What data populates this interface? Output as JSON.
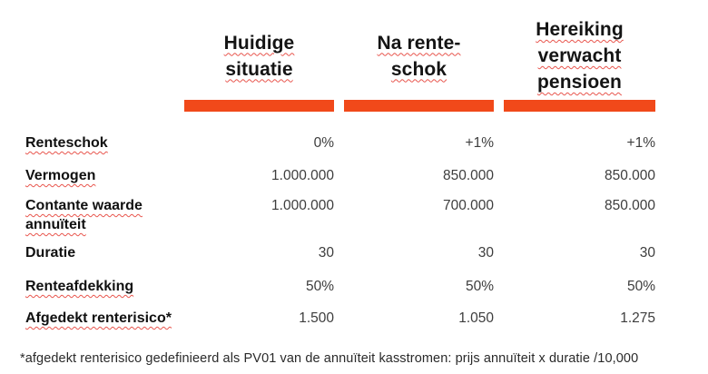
{
  "colors": {
    "accent_bar": "#F1491A",
    "spellcheck_squiggle": "#E8554D",
    "heading_text": "#141414",
    "value_text": "#3D3D3D"
  },
  "table": {
    "columns": [
      {
        "label": "Huidige situatie"
      },
      {
        "label": "Na rente-schok"
      },
      {
        "label": "Hereiking verwacht pensioen"
      }
    ],
    "rows": [
      {
        "label": "Renteschok",
        "values": [
          "0%",
          "+1%",
          "+1%"
        ]
      },
      {
        "label": "Vermogen",
        "values": [
          "1.000.000",
          "850.000",
          "850.000"
        ]
      },
      {
        "label": "Contante waarde annuïteit",
        "values": [
          "1.000.000",
          "700.000",
          "850.000"
        ]
      },
      {
        "label": "Duratie",
        "values": [
          "30",
          "30",
          "30"
        ]
      },
      {
        "label": "Renteafdekking",
        "values": [
          "50%",
          "50%",
          "50%"
        ]
      },
      {
        "label": "Afgedekt renterisico*",
        "values": [
          "1.500",
          "1.050",
          "1.275"
        ]
      }
    ]
  },
  "footnote": "*afgedekt renterisico gedefinieerd als PV01 van de annuïteit kasstromen: prijs annuïteit x duratie /10,000"
}
